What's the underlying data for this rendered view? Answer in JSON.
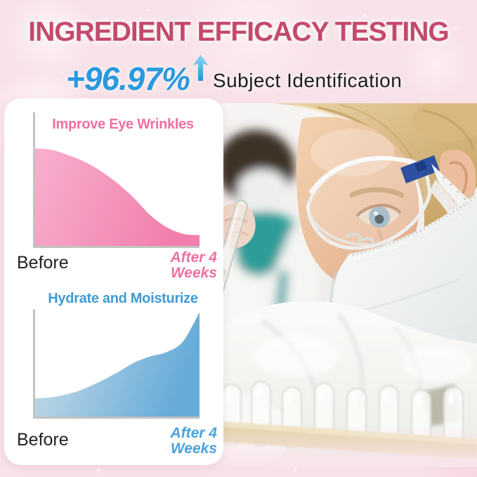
{
  "header": {
    "title": "INGREDIENT EFFICACY TESTING",
    "stat_value": "+96.97%",
    "stat_label": "Subject Identification",
    "arrow_icon": "up-arrow"
  },
  "colors": {
    "title": "#c34a6d",
    "stat_value": "#2b99de",
    "stat_label": "#1c1c1c",
    "axis": "#c2c2c2",
    "card_bg": "#ffffff",
    "page_bg": "#f8e2e8",
    "text_dark": "#222222",
    "arrow_top": "#8fd9f5",
    "arrow_bottom": "#2b90d4"
  },
  "chart_data": [
    {
      "type": "area",
      "title": "Improve Eye Wrinkles",
      "title_color": "#f0709f",
      "trend": "decreasing",
      "before_label": "Before",
      "after_line1": "After 4",
      "after_line2": "Weeks",
      "after_color": "#f0709f",
      "x_axis": {
        "label_start": "Before",
        "label_end": "After 4 Weeks",
        "ticks_visible": false
      },
      "y_axis": {
        "label": "",
        "ticks_visible": false,
        "range_percent": [
          0,
          100
        ]
      },
      "series": [
        {
          "name": "Eye wrinkle level (relative, unlabeled axis)",
          "x_percent": [
            0,
            10,
            20,
            30,
            40,
            50,
            60,
            70,
            80,
            90,
            100
          ],
          "values_percent": [
            73,
            72,
            68,
            63,
            56,
            47,
            36,
            23,
            14,
            9,
            8
          ]
        }
      ],
      "area_gradient": [
        "#f8b0cf",
        "#f17eac"
      ],
      "grid": false,
      "legend": "none"
    },
    {
      "type": "area",
      "title": "Hydrate and Moisturize",
      "title_color": "#3e9bd5",
      "trend": "increasing",
      "before_label": "Before",
      "after_line1": "After 4",
      "after_line2": "Weeks",
      "after_color": "#4aa3dc",
      "x_axis": {
        "label_start": "Before",
        "label_end": "After 4 Weeks",
        "ticks_visible": false
      },
      "y_axis": {
        "label": "",
        "ticks_visible": false,
        "range_percent": [
          0,
          100
        ]
      },
      "series": [
        {
          "name": "Hydration level (relative, unlabeled axis)",
          "x_percent": [
            0,
            10,
            20,
            30,
            40,
            50,
            60,
            70,
            80,
            90,
            100
          ],
          "values_percent": [
            17,
            18,
            21,
            26,
            33,
            41,
            50,
            56,
            60,
            70,
            97
          ]
        }
      ],
      "area_gradient": [
        "#cfdfe8",
        "#66abd8"
      ],
      "grid": false,
      "legend": "none"
    }
  ]
}
